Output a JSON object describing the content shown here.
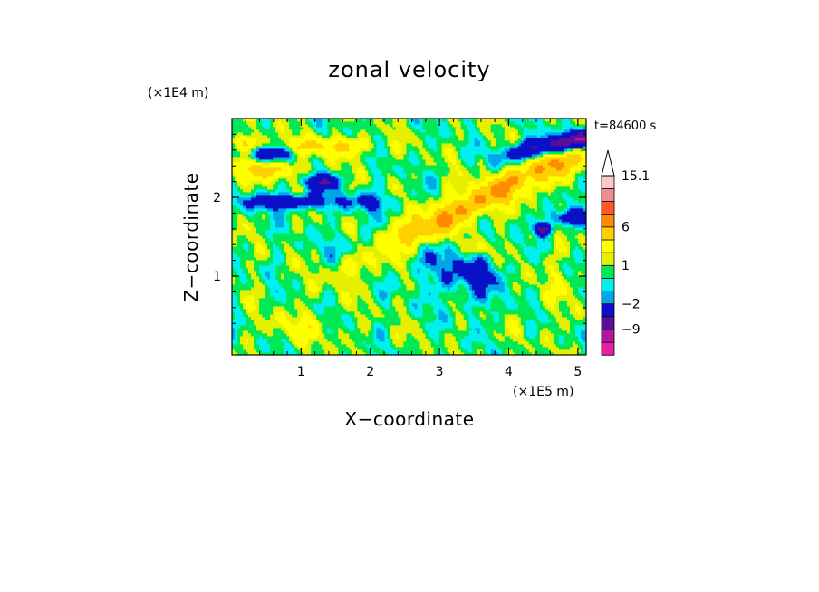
{
  "chart_data": {
    "type": "heatmap",
    "title": "zonal velocity",
    "time_label": "t=84600 s",
    "xlabel": "X−coordinate",
    "ylabel": "Z−coordinate",
    "x_unit": "(×1E5 m)",
    "y_unit": "(×1E4 m)",
    "xlim": [
      0,
      5.12
    ],
    "ylim": [
      0,
      3.0
    ],
    "x_ticks": [
      1,
      2,
      3,
      4,
      5
    ],
    "y_ticks": [
      1,
      2
    ],
    "x_tick_labels": [
      "1",
      "2",
      "3",
      "4",
      "5"
    ],
    "y_tick_labels": [
      "1",
      "2"
    ],
    "colorbar": {
      "levels": [
        -15.1,
        -12,
        -9,
        -6,
        -2,
        -1,
        0,
        1,
        2,
        4,
        6,
        9,
        12,
        15.1
      ],
      "tick_values": [
        15.1,
        6,
        1,
        -2,
        -9
      ],
      "tick_labels": [
        "15.1",
        "6",
        "1",
        "−2",
        "−9"
      ],
      "colors": [
        "#e81ea0",
        "#b0169e",
        "#5a0f9c",
        "#0a10c8",
        "#00a6e8",
        "#00f0f0",
        "#00e855",
        "#e4f000",
        "#ffff00",
        "#ffd000",
        "#ff8a00",
        "#ff5a28",
        "#f08c8c",
        "#ffc8c8"
      ],
      "extend_top": true
    }
  }
}
